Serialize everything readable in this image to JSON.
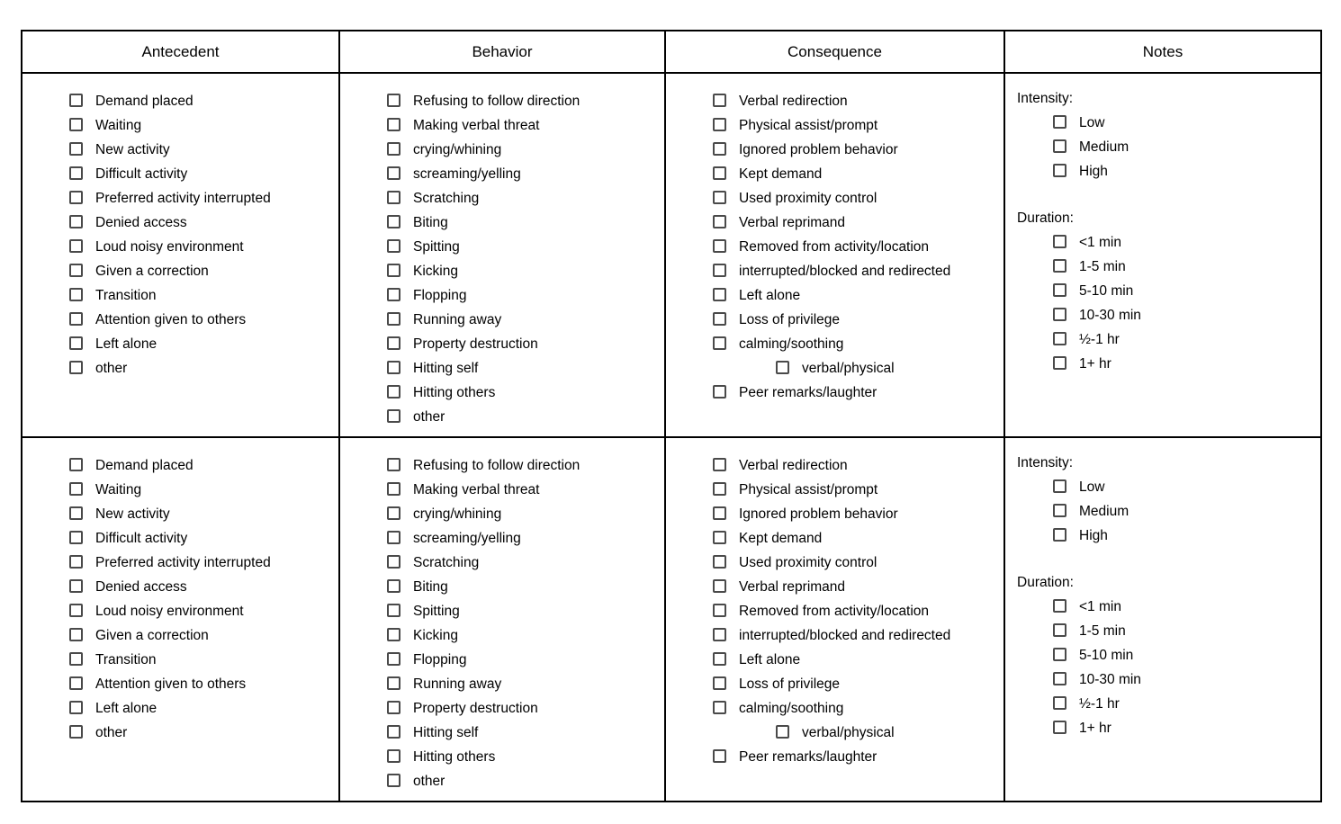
{
  "table": {
    "headers": [
      "Antecedent",
      "Behavior",
      "Consequence",
      "Notes"
    ],
    "antecedent": {
      "items": [
        "Demand placed",
        "Waiting",
        "New activity",
        "Difficult activity",
        "Preferred activity interrupted",
        "Denied access",
        "Loud noisy environment",
        "Given a correction",
        "Transition",
        "Attention given to others",
        "Left alone",
        "other"
      ]
    },
    "behavior": {
      "items": [
        "Refusing to follow direction",
        "Making verbal threat",
        "crying/whining",
        "screaming/yelling",
        "Scratching",
        "Biting",
        "Spitting",
        "Kicking",
        "Flopping",
        "Running away",
        "Property destruction",
        "Hitting self",
        "Hitting others",
        "other"
      ]
    },
    "consequence": {
      "items": [
        "Verbal redirection",
        "Physical assist/prompt",
        "Ignored problem behavior",
        "Kept demand",
        "Used proximity control",
        "Verbal reprimand",
        "Removed from activity/location",
        "interrupted/blocked and redirected",
        "Left alone",
        "Loss of privilege",
        "calming/soothing",
        {
          "label": "verbal/physical",
          "indent": true
        },
        "Peer remarks/laughter"
      ]
    },
    "notes": {
      "intensity_label": "Intensity:",
      "intensity_options": [
        "Low",
        "Medium",
        "High"
      ],
      "duration_label": "Duration:",
      "duration_options": [
        "<1 min",
        "1-5 min",
        "5-10 min",
        "10-30 min",
        "½-1 hr",
        "1+ hr"
      ]
    },
    "checkbox_state": "unchecked",
    "row_count": 2
  },
  "colors": {
    "border": "#000000",
    "checkbox_border": "#4a4a4a",
    "text": "#000000",
    "background": "#ffffff"
  }
}
